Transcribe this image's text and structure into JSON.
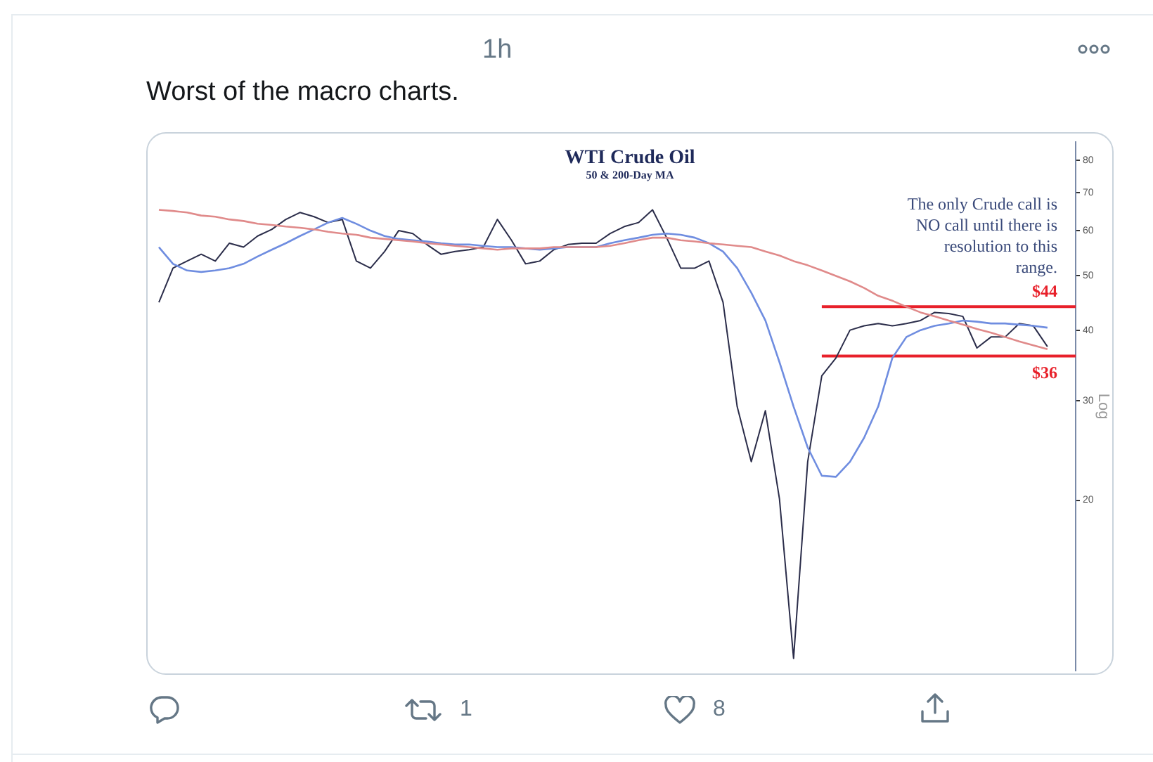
{
  "chart_data": {
    "type": "line",
    "title": "WTI Crude Oil",
    "subtitle": "50 & 200-Day MA",
    "ylabel": "Log",
    "annotations": [
      "1h",
      "Worst of the macro charts.",
      "The only Crude call is NO call until there is resolution to this range.",
      "1",
      "8",
      {
        "text": "$44",
        "y": 44
      },
      {
        "text": "$36",
        "y": 36
      }
    ],
    "categories": [
      null,
      null,
      null,
      null,
      null,
      null,
      null,
      null,
      null,
      null,
      null,
      null,
      null,
      null,
      null,
      null,
      null,
      null,
      null,
      null,
      null,
      null,
      null,
      null,
      null,
      null,
      null,
      null,
      null,
      null,
      null,
      null,
      null,
      null,
      null,
      null,
      null,
      null,
      null,
      null,
      null,
      null,
      null,
      null,
      null,
      null,
      null,
      null,
      null,
      null,
      null,
      null,
      null,
      null,
      null,
      null,
      null,
      null,
      null,
      null,
      null,
      null,
      null,
      null,
      null,
      null
    ],
    "series": [
      {
        "color": "#e08a8a",
        "values": [
          65.3,
          65.0,
          64.6,
          63.8,
          63.5,
          62.8,
          62.4,
          61.7,
          61.4,
          61.0,
          60.7,
          60.3,
          59.7,
          59.3,
          59.0,
          58.3,
          58.0,
          57.7,
          57.4,
          57.0,
          56.7,
          56.4,
          56.1,
          55.8,
          55.5,
          55.8,
          55.8,
          55.8,
          56.1,
          56.1,
          56.1,
          56.1,
          56.4,
          57.0,
          57.7,
          58.3,
          58.3,
          57.7,
          57.4,
          57.0,
          56.7,
          56.4,
          56.1,
          55.1,
          54.2,
          53.0,
          52.1,
          51.0,
          49.9,
          48.8,
          47.5,
          46.0,
          45.1,
          44.0,
          43.0,
          42.3,
          41.6,
          40.9,
          40.2,
          39.6,
          38.9,
          38.2,
          37.6,
          37.0,
          null,
          null
        ]
      },
      {
        "color": "#6f8de0",
        "values": [
          56.1,
          52.4,
          51.0,
          50.7,
          51.0,
          51.5,
          52.4,
          54.0,
          55.5,
          57.0,
          58.7,
          60.3,
          62.0,
          63.2,
          61.7,
          60.0,
          58.7,
          58.0,
          57.7,
          57.4,
          57.0,
          56.7,
          56.7,
          56.4,
          56.1,
          56.1,
          55.8,
          55.5,
          55.8,
          56.1,
          56.1,
          56.1,
          57.0,
          57.7,
          58.3,
          59.0,
          59.3,
          59.0,
          58.3,
          57.0,
          55.1,
          51.5,
          46.6,
          41.6,
          35.1,
          29.3,
          24.8,
          22.1,
          22.0,
          23.4,
          25.8,
          29.3,
          35.7,
          38.9,
          40,
          40.7,
          41.1,
          41.6,
          41.4,
          41.1,
          41.1,
          40.9,
          40.7,
          40.4,
          null,
          null
        ]
      },
      {
        "color": "#2b2d4a",
        "values": [
          44.8,
          51.5,
          53.0,
          54.5,
          53.0,
          57.0,
          56.1,
          58.7,
          60.3,
          62.8,
          64.6,
          63.5,
          62.0,
          62.8,
          53.0,
          51.5,
          55.1,
          60.0,
          59.3,
          56.7,
          54.5,
          55.1,
          55.5,
          56.1,
          62.8,
          57.7,
          52.4,
          53.0,
          55.5,
          56.7,
          57.0,
          57.0,
          59.3,
          61.0,
          62.0,
          65.3,
          58.3,
          51.5,
          51.5,
          53.0,
          44.8,
          29.3,
          23.4,
          28.8,
          20.1,
          10.5,
          23.4,
          33.2,
          35.7,
          40,
          40.7,
          41.1,
          40.7,
          41.1,
          41.6,
          43.0,
          42.8,
          42.3,
          37.2,
          38.9,
          38.9,
          41.1,
          40.7,
          37.4,
          null,
          null
        ]
      },
      {
        "color": "#e8202a",
        "values": [
          null,
          null,
          null,
          null,
          null,
          null,
          null,
          null,
          null,
          null,
          null,
          null,
          null,
          null,
          null,
          null,
          null,
          null,
          null,
          null,
          null,
          null,
          null,
          null,
          null,
          null,
          null,
          null,
          null,
          null,
          null,
          null,
          null,
          null,
          null,
          null,
          null,
          null,
          null,
          null,
          null,
          null,
          null,
          null,
          null,
          null,
          null,
          44,
          44,
          44,
          44,
          44,
          44,
          44,
          44,
          44,
          44,
          44,
          44,
          44,
          44,
          44,
          44,
          44,
          44,
          44
        ]
      },
      {
        "color": "#e8202a",
        "values": [
          null,
          null,
          null,
          null,
          null,
          null,
          null,
          null,
          null,
          null,
          null,
          null,
          null,
          null,
          null,
          null,
          null,
          null,
          null,
          null,
          null,
          null,
          null,
          null,
          null,
          null,
          null,
          null,
          null,
          null,
          null,
          null,
          null,
          null,
          null,
          null,
          null,
          null,
          null,
          null,
          null,
          null,
          null,
          null,
          null,
          null,
          null,
          36,
          36,
          36,
          36,
          36,
          36,
          36,
          36,
          36,
          36,
          36,
          36,
          36,
          36,
          36,
          36,
          36,
          36,
          36
        ]
      }
    ],
    "ylim": [
      10,
      86
    ],
    "yticks": [
      20,
      30,
      40,
      50,
      60,
      70,
      80
    ],
    "log": "y",
    "tick_labels": "y"
  }
}
